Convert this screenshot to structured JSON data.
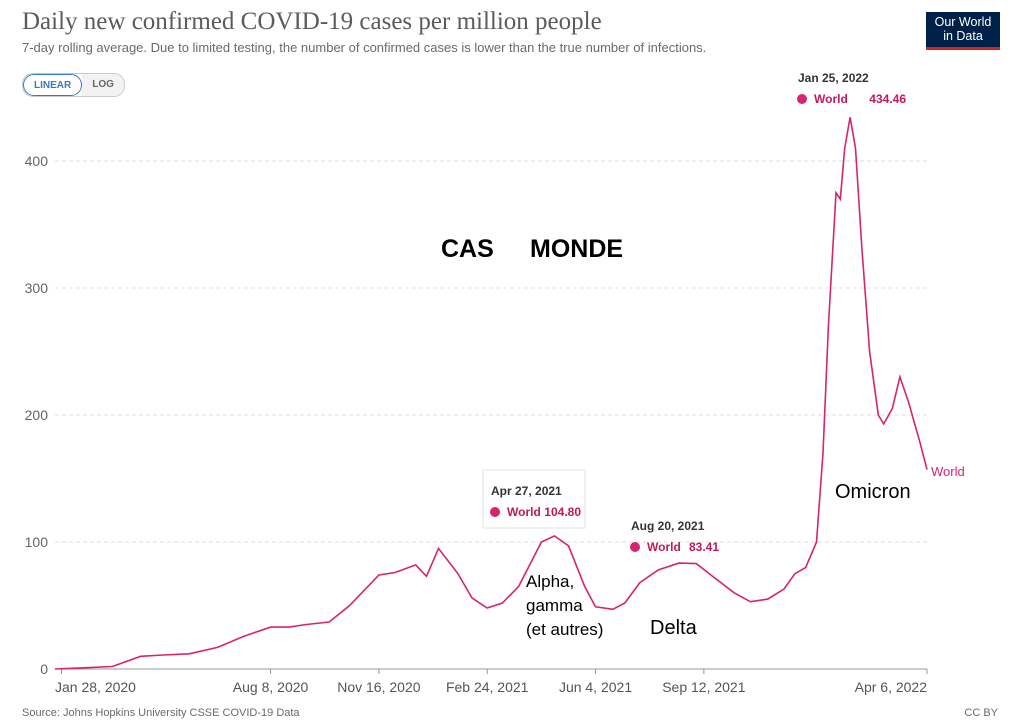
{
  "header": {
    "title": "Daily new confirmed COVID-19 cases per million people",
    "subtitle": "7-day rolling average. Due to limited testing, the number of confirmed cases is lower than the true number of infections.",
    "logo_line1": "Our World",
    "logo_line2": "in Data"
  },
  "toggle": {
    "linear_label": "LINEAR",
    "log_label": "LOG",
    "active": "LINEAR"
  },
  "footer": {
    "source": "Source: Johns Hopkins University CSSE COVID-19 Data",
    "license": "CC BY"
  },
  "colors": {
    "series": "#d6246e",
    "grid": "#dddddd",
    "logo_bg": "#002147",
    "logo_accent": "#ce261e",
    "toggle_active": "#3a77c2"
  },
  "chart_data": {
    "type": "line",
    "ylim": [
      0,
      450
    ],
    "yticks": [
      0,
      100,
      200,
      300,
      400
    ],
    "xlim": [
      "2020-01-22",
      "2022-04-06"
    ],
    "xticks": [
      {
        "date": "2020-01-28",
        "label": "Jan 28, 2020"
      },
      {
        "date": "2020-08-08",
        "label": "Aug 8, 2020"
      },
      {
        "date": "2020-11-16",
        "label": "Nov 16, 2020"
      },
      {
        "date": "2021-02-24",
        "label": "Feb 24, 2021"
      },
      {
        "date": "2021-06-04",
        "label": "Jun 4, 2021"
      },
      {
        "date": "2021-09-12",
        "label": "Sep 12, 2021"
      },
      {
        "date": "2022-04-06",
        "label": "Apr 6, 2022"
      }
    ],
    "series": [
      {
        "name": "World",
        "color": "#d6246e",
        "points": [
          [
            "2020-01-22",
            0
          ],
          [
            "2020-02-20",
            1
          ],
          [
            "2020-03-15",
            2
          ],
          [
            "2020-04-10",
            10
          ],
          [
            "2020-05-01",
            11
          ],
          [
            "2020-05-25",
            12
          ],
          [
            "2020-06-20",
            17
          ],
          [
            "2020-07-15",
            26
          ],
          [
            "2020-08-08",
            33
          ],
          [
            "2020-08-25",
            33
          ],
          [
            "2020-09-10",
            35
          ],
          [
            "2020-10-01",
            37
          ],
          [
            "2020-10-20",
            50
          ],
          [
            "2020-11-16",
            74
          ],
          [
            "2020-12-01",
            76
          ],
          [
            "2020-12-20",
            82
          ],
          [
            "2020-12-30",
            73
          ],
          [
            "2021-01-10",
            95
          ],
          [
            "2021-01-28",
            75
          ],
          [
            "2021-02-10",
            56
          ],
          [
            "2021-02-24",
            48
          ],
          [
            "2021-03-10",
            52
          ],
          [
            "2021-03-25",
            65
          ],
          [
            "2021-04-15",
            100
          ],
          [
            "2021-04-27",
            104.8
          ],
          [
            "2021-05-10",
            97
          ],
          [
            "2021-05-25",
            65
          ],
          [
            "2021-06-04",
            49
          ],
          [
            "2021-06-20",
            47
          ],
          [
            "2021-07-01",
            52
          ],
          [
            "2021-07-15",
            68
          ],
          [
            "2021-08-01",
            78
          ],
          [
            "2021-08-20",
            83.41
          ],
          [
            "2021-09-05",
            83
          ],
          [
            "2021-09-20",
            73
          ],
          [
            "2021-10-10",
            60
          ],
          [
            "2021-10-25",
            53
          ],
          [
            "2021-11-10",
            55
          ],
          [
            "2021-11-25",
            63
          ],
          [
            "2021-12-05",
            75
          ],
          [
            "2021-12-15",
            80
          ],
          [
            "2021-12-25",
            100
          ],
          [
            "2021-12-31",
            170
          ],
          [
            "2022-01-05",
            270
          ],
          [
            "2022-01-12",
            375
          ],
          [
            "2022-01-16",
            370
          ],
          [
            "2022-01-20",
            410
          ],
          [
            "2022-01-25",
            434.46
          ],
          [
            "2022-01-30",
            410
          ],
          [
            "2022-02-05",
            330
          ],
          [
            "2022-02-12",
            250
          ],
          [
            "2022-02-20",
            200
          ],
          [
            "2022-02-25",
            193
          ],
          [
            "2022-03-05",
            205
          ],
          [
            "2022-03-12",
            230
          ],
          [
            "2022-03-20",
            210
          ],
          [
            "2022-03-25",
            195
          ],
          [
            "2022-03-30",
            180
          ],
          [
            "2022-04-06",
            157
          ]
        ]
      }
    ],
    "end_label": "World",
    "tooltips": [
      {
        "date": "2021-04-27",
        "date_label": "Apr 27, 2021",
        "series": "World",
        "value_label": "104.80",
        "box": true
      },
      {
        "date": "2021-08-20",
        "date_label": "Aug 20, 2021",
        "series": "World",
        "value_label": "83.41",
        "box": false
      },
      {
        "date": "2022-01-25",
        "date_label": "Jan 25, 2022",
        "series": "World",
        "value_label": "434.46",
        "box": false
      }
    ],
    "annotations": {
      "cas": "CAS",
      "monde": "MONDE",
      "alpha_1": "Alpha,",
      "alpha_2": "gamma",
      "alpha_3": "(et autres)",
      "delta": "Delta",
      "omicron": "Omicron"
    }
  }
}
